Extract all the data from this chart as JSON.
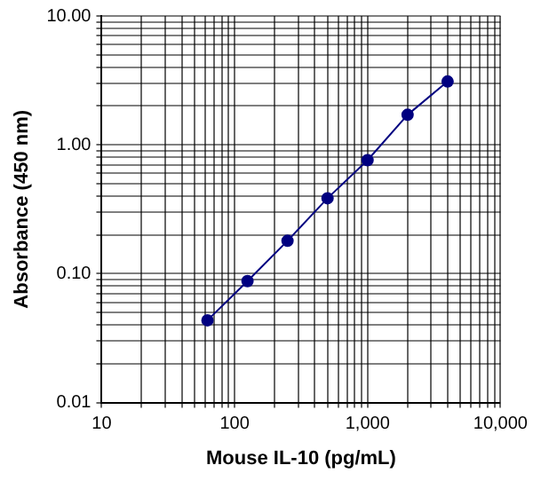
{
  "chart_data": {
    "type": "line",
    "xlabel": "Mouse IL-10 (pg/mL)",
    "ylabel": "Absorbance (450 nm)",
    "x": [
      62.5,
      125,
      250,
      500,
      1000,
      2000,
      4000
    ],
    "series": [
      {
        "color": "#000080",
        "values": [
          0.0435,
          0.0875,
          0.18,
          0.385,
          0.76,
          1.71,
          3.1
        ]
      }
    ],
    "log": "xy",
    "xlim": [
      10,
      10000
    ],
    "ylim": [
      0.01,
      10
    ],
    "xticks": [
      10,
      {
        "value": 20,
        "label": null
      },
      {
        "value": 30,
        "label": null
      },
      {
        "value": 40,
        "label": null
      },
      {
        "value": 50,
        "label": null
      },
      {
        "value": 60,
        "label": null
      },
      {
        "value": 70,
        "label": null
      },
      {
        "value": 80,
        "label": null
      },
      {
        "value": 90,
        "label": null
      },
      100,
      {
        "value": 200,
        "label": null
      },
      {
        "value": 300,
        "label": null
      },
      {
        "value": 400,
        "label": null
      },
      {
        "value": 500,
        "label": null
      },
      {
        "value": 600,
        "label": null
      },
      {
        "value": 700,
        "label": null
      },
      {
        "value": 800,
        "label": null
      },
      {
        "value": 900,
        "label": null
      },
      {
        "value": 1000,
        "label": "1,000"
      },
      {
        "value": 2000,
        "label": null
      },
      {
        "value": 3000,
        "label": null
      },
      {
        "value": 4000,
        "label": null
      },
      {
        "value": 5000,
        "label": null
      },
      {
        "value": 6000,
        "label": null
      },
      {
        "value": 7000,
        "label": null
      },
      {
        "value": 8000,
        "label": null
      },
      {
        "value": 9000,
        "label": null
      },
      {
        "value": 10000,
        "label": "10,000"
      }
    ],
    "yticks": [
      0.01,
      {
        "value": 0.02,
        "label": null
      },
      {
        "value": 0.03,
        "label": null
      },
      {
        "value": 0.04,
        "label": null
      },
      {
        "value": 0.05,
        "label": null
      },
      {
        "value": 0.06,
        "label": null
      },
      {
        "value": 0.07,
        "label": null
      },
      {
        "value": 0.08,
        "label": null
      },
      {
        "value": 0.09,
        "label": null
      },
      {
        "value": 0.1,
        "label": "0.10"
      },
      {
        "value": 0.2,
        "label": null
      },
      {
        "value": 0.3,
        "label": null
      },
      {
        "value": 0.4,
        "label": null
      },
      {
        "value": 0.5,
        "label": null
      },
      {
        "value": 0.6,
        "label": null
      },
      {
        "value": 0.7,
        "label": null
      },
      {
        "value": 0.8,
        "label": null
      },
      {
        "value": 0.9,
        "label": null
      },
      {
        "value": 1,
        "label": "1.00"
      },
      {
        "value": 2,
        "label": null
      },
      {
        "value": 3,
        "label": null
      },
      {
        "value": 4,
        "label": null
      },
      {
        "value": 5,
        "label": null
      },
      {
        "value": 6,
        "label": null
      },
      {
        "value": 7,
        "label": null
      },
      {
        "value": 8,
        "label": null
      },
      {
        "value": 9,
        "label": null
      },
      {
        "value": 10,
        "label": "10.00"
      }
    ],
    "grid": true,
    "legend": false,
    "marker": "circle",
    "line_style": "solid"
  }
}
